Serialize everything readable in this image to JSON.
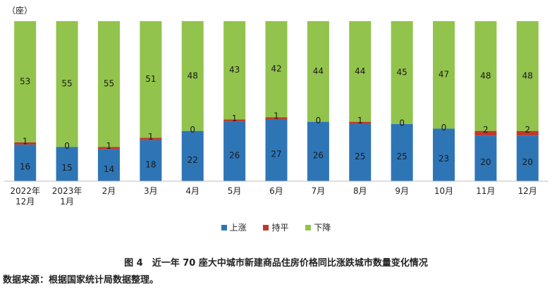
{
  "unit_label": "（座）",
  "legend": [
    {
      "name": "上涨",
      "color": "#2e75b6"
    },
    {
      "name": "持平",
      "color": "#c0392b"
    },
    {
      "name": "下降",
      "color": "#92c34c"
    }
  ],
  "caption": "图 4　近一年 70 座大中城市新建商品住房价格同比涨跌城市数量变化情况",
  "source": "数据来源：根据国家统计局数据整理。",
  "chart_data": {
    "type": "bar",
    "stacked": true,
    "categories": [
      "2022年\n12月",
      "2023年\n1月",
      "2月",
      "3月",
      "4月",
      "5月",
      "6月",
      "7月",
      "8月",
      "9月",
      "10月",
      "11月",
      "12月"
    ],
    "series": [
      {
        "name": "上涨",
        "values": [
          16,
          15,
          14,
          18,
          22,
          26,
          27,
          26,
          25,
          25,
          23,
          20,
          20
        ]
      },
      {
        "name": "持平",
        "values": [
          1,
          0,
          1,
          1,
          0,
          1,
          1,
          0,
          1,
          0,
          0,
          2,
          2
        ]
      },
      {
        "name": "下降",
        "values": [
          53,
          55,
          55,
          51,
          48,
          43,
          42,
          44,
          44,
          45,
          47,
          48,
          48
        ]
      }
    ],
    "ylim": [
      0,
      70
    ],
    "grid": false,
    "legend_position": "bottom"
  }
}
